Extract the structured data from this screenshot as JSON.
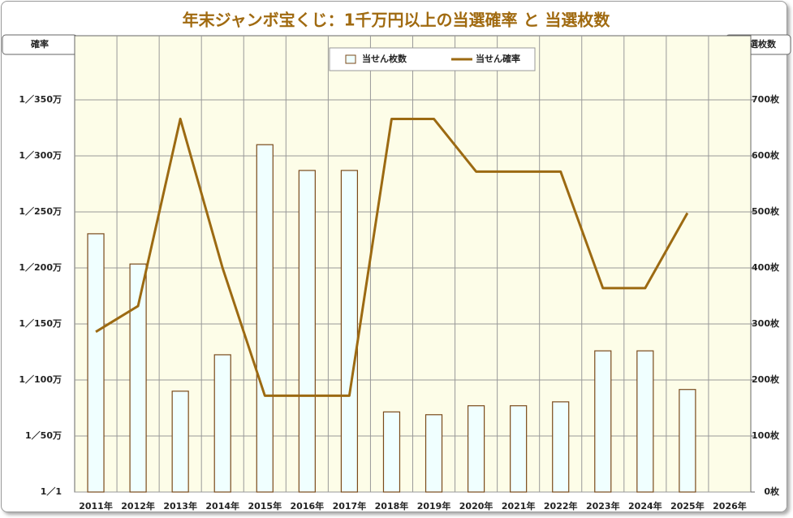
{
  "chart_data": {
    "type": "bar",
    "title": "年末ジャンボ宝くじ：1千万円以上の当選確率 と 当選枚数",
    "categories": [
      "2011年",
      "2012年",
      "2013年",
      "2014年",
      "2015年",
      "2016年",
      "2017年",
      "2018年",
      "2019年",
      "2020年",
      "2021年",
      "2022年",
      "2023年",
      "2024年",
      "2025年",
      "2026年"
    ],
    "series": [
      {
        "name": "当せん枚数",
        "type": "bar",
        "axis": "y2",
        "color": "#f0ffff",
        "stroke": "#7a4a1a",
        "values": [
          461,
          407,
          180,
          245,
          620,
          574,
          574,
          143,
          138,
          154,
          154,
          161,
          252,
          252,
          183,
          null
        ]
      },
      {
        "name": "当せん確率",
        "type": "line",
        "axis": "y",
        "color": "#9c6a12",
        "values": [
          143,
          166,
          333,
          200,
          86,
          86,
          86,
          333,
          333,
          286,
          286,
          286,
          182,
          182,
          249,
          null
        ]
      }
    ],
    "ylabel": "確率",
    "y2label": "当選枚数",
    "ylim": [
      0,
      400
    ],
    "yticks": [
      {
        "value": 0,
        "label": "1／1"
      },
      {
        "value": 50,
        "label": "1／50万"
      },
      {
        "value": 100,
        "label": "1／100万"
      },
      {
        "value": 150,
        "label": "1／150万"
      },
      {
        "value": 200,
        "label": "1／200万"
      },
      {
        "value": 250,
        "label": "1／250万"
      },
      {
        "value": 300,
        "label": "1／300万"
      },
      {
        "value": 350,
        "label": "1／350万"
      }
    ],
    "y2lim": [
      0,
      800
    ],
    "y2ticks": [
      {
        "value": 0,
        "label": "0枚"
      },
      {
        "value": 100,
        "label": "100枚"
      },
      {
        "value": 200,
        "label": "200枚"
      },
      {
        "value": 300,
        "label": "300枚"
      },
      {
        "value": 400,
        "label": "400枚"
      },
      {
        "value": 500,
        "label": "500枚"
      },
      {
        "value": 600,
        "label": "600枚"
      },
      {
        "value": 700,
        "label": "700枚"
      }
    ],
    "grid": true,
    "legend": "top"
  }
}
